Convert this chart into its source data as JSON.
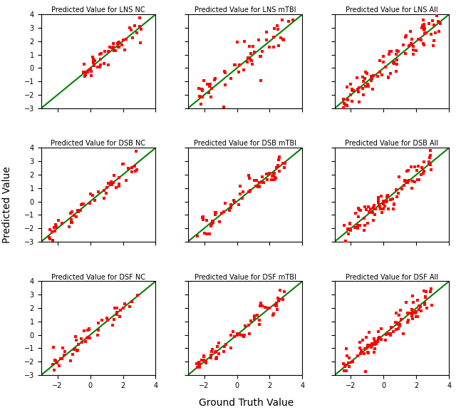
{
  "titles": [
    [
      "Predicted Value for LNS NC",
      "Predicted Value for LNS mTBI",
      "Predicted Value for LNS All"
    ],
    [
      "Predicted Value for DSB NC",
      "Predicted Value for DSB mTBI",
      "Predicted Value for DSB All"
    ],
    [
      "Predicted Value for DSF NC",
      "Predicted Value for DSF mTBI",
      "Predicted Value for DSF All"
    ]
  ],
  "xlabel": "Ground Truth Value",
  "ylabel": "Predicted Value",
  "xlim": [
    -3,
    4
  ],
  "ylim": [
    -3,
    4
  ],
  "xticks": [
    -2,
    0,
    2,
    4
  ],
  "yticks": [
    -3,
    -2,
    -1,
    0,
    1,
    2,
    3,
    4
  ],
  "dot_color": "#FF0000",
  "line_color": "#008000",
  "dot_size": 6,
  "line_width": 1.5,
  "title_fontsize": 7.0,
  "tick_fontsize": 7,
  "axis_label_fontsize": 10,
  "subplot_params": [
    [
      {
        "seed": 42,
        "n": 50,
        "xmin": -0.5,
        "xmax": 3.2,
        "noise": 0.45
      },
      {
        "seed": 17,
        "n": 60,
        "xmin": -2.5,
        "xmax": 3.5,
        "noise": 0.7
      },
      {
        "seed": 99,
        "n": 95,
        "xmin": -2.5,
        "xmax": 3.5,
        "noise": 0.55
      }
    ],
    [
      {
        "seed": 13,
        "n": 55,
        "xmin": -2.5,
        "xmax": 3.0,
        "noise": 0.45
      },
      {
        "seed": 27,
        "n": 65,
        "xmin": -2.5,
        "xmax": 3.0,
        "noise": 0.5
      },
      {
        "seed": 33,
        "n": 95,
        "xmin": -2.5,
        "xmax": 3.0,
        "noise": 0.45
      }
    ],
    [
      {
        "seed": 77,
        "n": 50,
        "xmin": -2.5,
        "xmax": 3.0,
        "noise": 0.45
      },
      {
        "seed": 88,
        "n": 65,
        "xmin": -2.5,
        "xmax": 3.0,
        "noise": 0.5
      },
      {
        "seed": 55,
        "n": 95,
        "xmin": -2.5,
        "xmax": 3.0,
        "noise": 0.45
      }
    ]
  ]
}
